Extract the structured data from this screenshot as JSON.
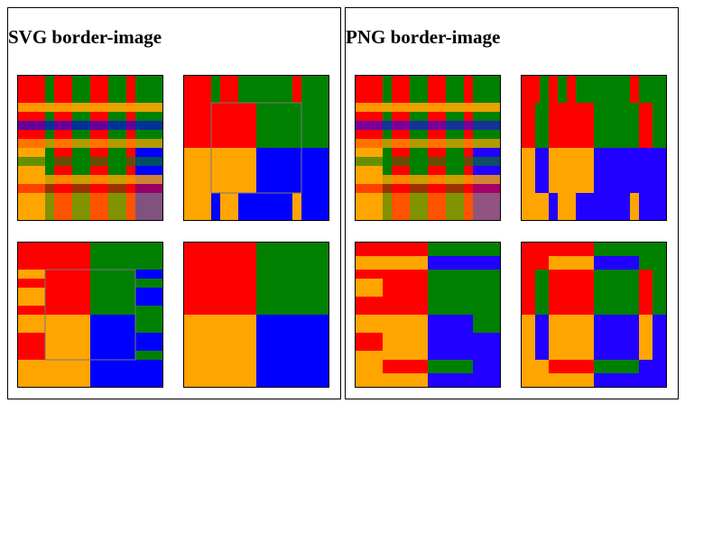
{
  "panels": [
    {
      "id": "svg",
      "title": "SVG border-image"
    },
    {
      "id": "png",
      "title": "PNG border-image"
    }
  ],
  "colors": {
    "red": "#ff0000",
    "green": "#008000",
    "blue": "#0000ff",
    "blue_png": "#2200ff",
    "orange": "#ffa500"
  }
}
